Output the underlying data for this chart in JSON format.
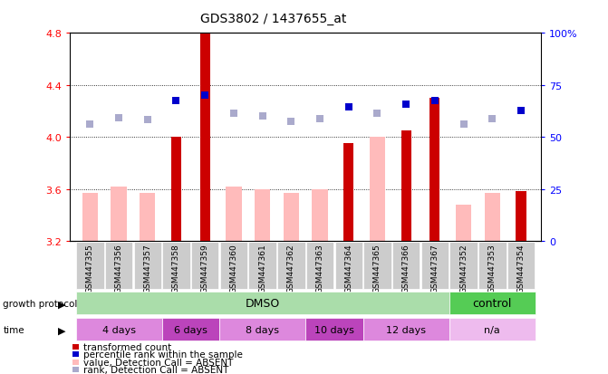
{
  "title": "GDS3802 / 1437655_at",
  "samples": [
    "GSM447355",
    "GSM447356",
    "GSM447357",
    "GSM447358",
    "GSM447359",
    "GSM447360",
    "GSM447361",
    "GSM447362",
    "GSM447363",
    "GSM447364",
    "GSM447365",
    "GSM447366",
    "GSM447367",
    "GSM447352",
    "GSM447353",
    "GSM447354"
  ],
  "red_values": [
    null,
    null,
    null,
    4.0,
    4.8,
    null,
    null,
    null,
    null,
    3.95,
    null,
    4.05,
    4.3,
    null,
    null,
    3.58
  ],
  "pink_values": [
    3.57,
    3.62,
    3.57,
    null,
    null,
    3.62,
    3.6,
    3.57,
    3.6,
    null,
    4.0,
    null,
    null,
    3.48,
    3.57,
    null
  ],
  "blue_values": [
    null,
    null,
    null,
    4.28,
    4.32,
    null,
    null,
    null,
    null,
    4.23,
    null,
    4.25,
    4.28,
    null,
    null,
    4.2
  ],
  "light_blue_values": [
    4.1,
    4.15,
    4.13,
    null,
    null,
    4.18,
    4.16,
    4.12,
    4.14,
    null,
    4.18,
    null,
    null,
    4.1,
    4.14,
    null
  ],
  "ylim": [
    3.2,
    4.8
  ],
  "yticks_left": [
    3.2,
    3.6,
    4.0,
    4.4,
    4.8
  ],
  "yticks_right": [
    0,
    25,
    50,
    75,
    100
  ],
  "red_color": "#cc0000",
  "pink_color": "#ffbbbb",
  "blue_color": "#0000cc",
  "light_blue_color": "#aaaacc",
  "dmso_color": "#aaddaa",
  "control_color": "#55cc55",
  "sample_box_color": "#cccccc",
  "time_groups": [
    {
      "label": "4 days",
      "start": 0,
      "end": 3,
      "color": "#dd88dd"
    },
    {
      "label": "6 days",
      "start": 3,
      "end": 5,
      "color": "#bb44bb"
    },
    {
      "label": "8 days",
      "start": 5,
      "end": 8,
      "color": "#dd88dd"
    },
    {
      "label": "10 days",
      "start": 8,
      "end": 10,
      "color": "#bb44bb"
    },
    {
      "label": "12 days",
      "start": 10,
      "end": 13,
      "color": "#dd88dd"
    },
    {
      "label": "n/a",
      "start": 13,
      "end": 16,
      "color": "#eebbee"
    }
  ]
}
